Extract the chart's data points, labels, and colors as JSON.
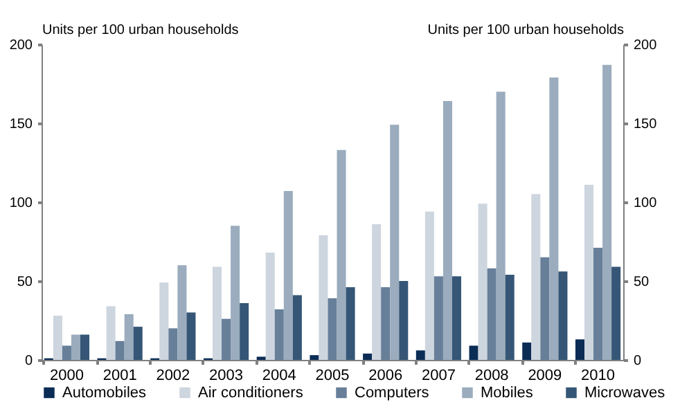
{
  "chart_data": {
    "type": "bar",
    "ylabel": "Units per 100 urban households",
    "y2label": "Units per 100 urban households",
    "categories": [
      "2000",
      "2001",
      "2002",
      "2003",
      "2004",
      "2005",
      "2006",
      "2007",
      "2008",
      "2009",
      "2010"
    ],
    "series": [
      {
        "name": "Automobiles",
        "color": "#0b2c55",
        "values": [
          1,
          1,
          1,
          1,
          2,
          3,
          4,
          6,
          9,
          11,
          13
        ]
      },
      {
        "name": "Air conditioners",
        "color": "#cdd5df",
        "values": [
          28,
          34,
          49,
          59,
          68,
          79,
          86,
          94,
          99,
          105,
          111
        ]
      },
      {
        "name": "Computers",
        "color": "#677f99",
        "values": [
          9,
          12,
          20,
          26,
          32,
          39,
          46,
          53,
          58,
          65,
          71
        ]
      },
      {
        "name": "Mobiles",
        "color": "#9aacbd",
        "values": [
          16,
          29,
          60,
          85,
          107,
          133,
          149,
          164,
          170,
          179,
          187
        ]
      },
      {
        "name": "Microwaves",
        "color": "#355676",
        "values": [
          16,
          21,
          30,
          36,
          41,
          46,
          50,
          53,
          54,
          56,
          59
        ]
      }
    ],
    "ylim": [
      0,
      200
    ],
    "yticks": [
      0,
      50,
      100,
      150,
      200
    ],
    "y2lim": [
      0,
      200
    ],
    "y2ticks": [
      0,
      50,
      100,
      150,
      200
    ],
    "grid": false,
    "legend": "bottom"
  }
}
